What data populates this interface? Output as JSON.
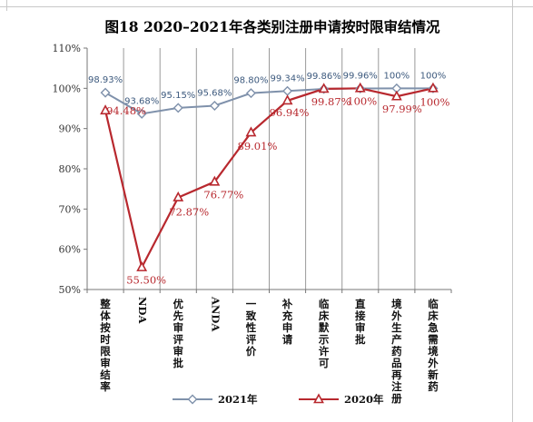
{
  "chart_data": {
    "type": "line",
    "title": "图18  2020–2021年各类别注册申请按时限审结情况",
    "categories": [
      "整体按时限审结率",
      "NDA",
      "优先审评审批",
      "ANDA",
      "一致性评价",
      "补充申请",
      "临床默示许可",
      "直接审批",
      "境外生产药品再注册",
      "临床急需境外新药"
    ],
    "yaxis": {
      "min": 50,
      "max": 110,
      "step": 10,
      "unit": "%",
      "ticks": [
        "50%",
        "60%",
        "70%",
        "80%",
        "90%",
        "100%",
        "110%"
      ]
    },
    "grid": "vertical",
    "legend": "bottom",
    "series": [
      {
        "name": "2021年",
        "color": "#7f91ab",
        "marker": "diamond",
        "values": [
          98.93,
          93.68,
          95.15,
          95.68,
          98.8,
          99.34,
          99.86,
          99.96,
          100,
          100
        ],
        "labels": [
          "98.93%",
          "93.68%",
          "95.15%",
          "95.68%",
          "98.80%",
          "99.34%",
          "99.86%",
          "99.96%",
          "100%",
          "100%"
        ]
      },
      {
        "name": "2020年",
        "color": "#b8282e",
        "marker": "triangle",
        "values": [
          94.48,
          55.5,
          72.87,
          76.77,
          89.01,
          96.94,
          99.87,
          100,
          97.99,
          100
        ],
        "labels": [
          "94.48%",
          "55.50%",
          "72.87%",
          "76.77%",
          "89.01%",
          "96.94%",
          "99.87%",
          "100%",
          "97.99%",
          "100%"
        ]
      }
    ]
  }
}
